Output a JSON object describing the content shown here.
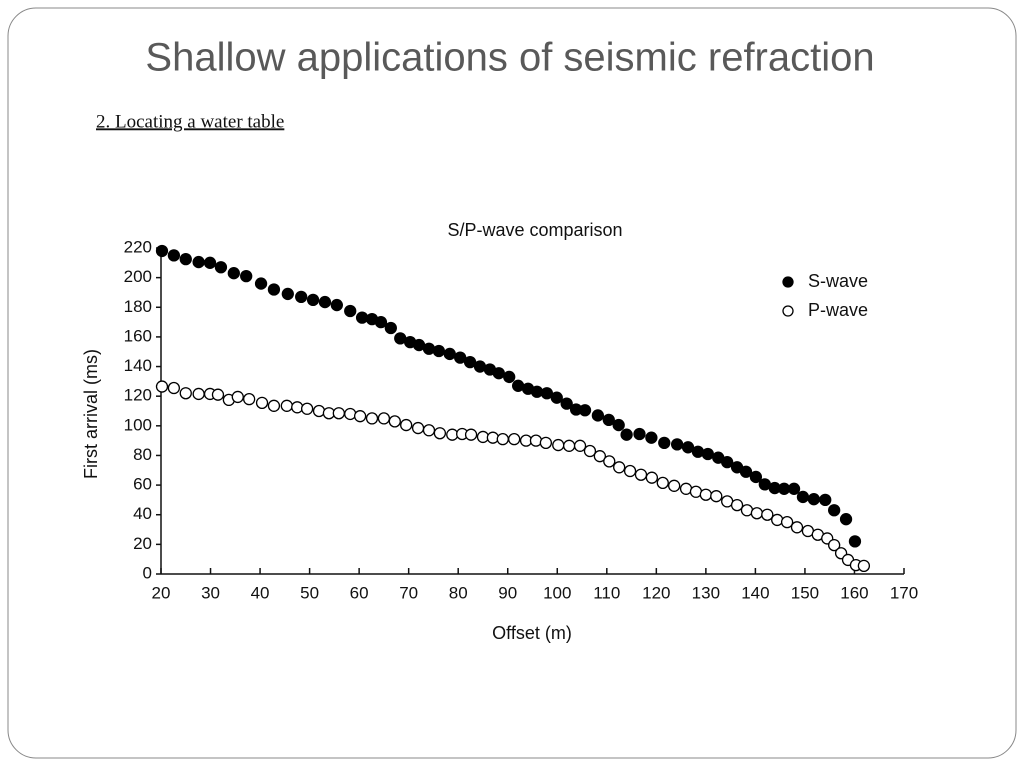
{
  "title": "Shallow applications of seismic refraction",
  "subtitle": "2. Locating a water table",
  "chart_data": {
    "type": "scatter",
    "title": "S/P-wave comparison",
    "x_label": "Offset (m)",
    "y_label": "First arrival (ms)",
    "xlim": [
      20,
      170
    ],
    "xticks": [
      20,
      30,
      40,
      50,
      60,
      70,
      80,
      90,
      100,
      110,
      120,
      130,
      140,
      150,
      160,
      170
    ],
    "ylim": [
      0,
      220
    ],
    "yticks": [
      0,
      20,
      40,
      60,
      80,
      100,
      120,
      140,
      160,
      180,
      200,
      220
    ],
    "grid": false,
    "legend": "upper right",
    "series": [
      {
        "name": "S-wave",
        "color": "#000000",
        "x": [
          20.2,
          22.6,
          25.0,
          27.6,
          29.9,
          32.1,
          34.7,
          37.2,
          40.2,
          42.8,
          45.6,
          48.3,
          50.7,
          53.1,
          55.5,
          58.2,
          60.6,
          62.6,
          64.4,
          66.4,
          68.3,
          70.3,
          72.1,
          74.1,
          76.1,
          78.3,
          80.4,
          82.4,
          84.4,
          86.4,
          88.2,
          90.3,
          92.1,
          94.1,
          95.9,
          97.9,
          99.9,
          101.9,
          103.8,
          105.6,
          108.2,
          110.4,
          112.4,
          114.0,
          116.6,
          119.0,
          121.6,
          124.2,
          126.4,
          128.4,
          130.4,
          132.5,
          134.3,
          136.3,
          138.1,
          140.1,
          141.9,
          143.9,
          145.8,
          147.8,
          149.6,
          151.8,
          154.1,
          155.9,
          158.3,
          160.1
        ],
        "values": [
          218,
          215,
          212.5,
          210.5,
          210,
          207,
          203,
          201,
          196,
          192,
          189,
          187,
          185,
          183.5,
          181.5,
          177.5,
          173,
          172,
          170,
          166,
          159,
          156.5,
          154.5,
          152,
          150.5,
          148.5,
          146,
          143,
          140,
          138,
          135.5,
          133,
          127,
          125,
          123,
          122,
          119,
          115,
          111,
          110.5,
          107,
          104,
          100.5,
          94,
          94.5,
          92,
          88.5,
          87.5,
          85.5,
          82.5,
          81,
          78.5,
          75.5,
          72,
          69,
          65.5,
          60.5,
          58,
          57.5,
          57.5,
          52,
          50.5,
          50,
          43,
          37,
          22
        ]
      },
      {
        "name": "P-wave",
        "color": "#ffffff",
        "x": [
          20.2,
          22.6,
          25.0,
          27.6,
          29.9,
          31.5,
          33.7,
          35.5,
          37.8,
          40.4,
          42.8,
          45.4,
          47.5,
          49.5,
          51.9,
          53.9,
          55.9,
          58.2,
          60.2,
          62.6,
          65.0,
          67.2,
          69.5,
          71.9,
          74.1,
          76.3,
          78.8,
          80.8,
          82.6,
          85.0,
          87.0,
          89.0,
          91.3,
          93.7,
          95.7,
          97.7,
          100.2,
          102.4,
          104.6,
          106.6,
          108.6,
          110.5,
          112.5,
          114.7,
          116.9,
          119.1,
          121.3,
          123.6,
          126.0,
          128.0,
          130.0,
          132.1,
          134.3,
          136.3,
          138.3,
          140.3,
          142.4,
          144.4,
          146.4,
          148.4,
          150.6,
          152.6,
          154.5,
          155.9,
          157.3,
          158.7,
          160.3,
          161.9
        ],
        "values": [
          126.5,
          125.5,
          122,
          121.5,
          121.5,
          121,
          117.5,
          119.5,
          118,
          115.5,
          113.5,
          113.5,
          112.5,
          111.5,
          110,
          108.5,
          108.5,
          108,
          106.5,
          105,
          105,
          103,
          100.5,
          98.5,
          97,
          95,
          94,
          94.5,
          94,
          92.5,
          92,
          91,
          91,
          90,
          90,
          88.5,
          87,
          86.5,
          86.5,
          83,
          79.5,
          76,
          72,
          69.5,
          67,
          65,
          61.5,
          59.5,
          57.5,
          55.5,
          53.5,
          52.5,
          49,
          46.5,
          43,
          41,
          40,
          36.5,
          35,
          31.5,
          29,
          26.5,
          24,
          19.5,
          14,
          9.5,
          6,
          5.5
        ]
      }
    ]
  }
}
